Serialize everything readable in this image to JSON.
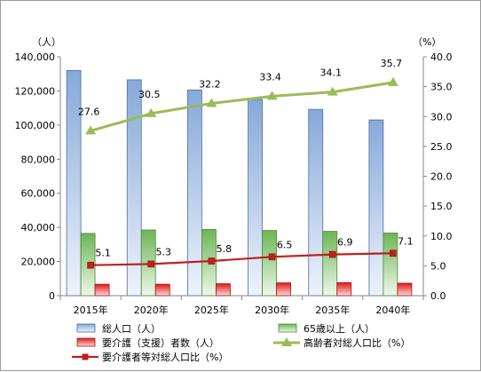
{
  "chart_data": {
    "type": "bar",
    "categories": [
      "2015年",
      "2020年",
      "2025年",
      "2030年",
      "2035年",
      "2040年"
    ],
    "y_left_unit": "（人）",
    "y_right_unit": "（%）",
    "y_left_range": [
      0,
      140000
    ],
    "y_left_ticks": [
      "0",
      "20,000",
      "40,000",
      "60,000",
      "80,000",
      "100,000",
      "120,000",
      "140,000"
    ],
    "y_left_tick_values": [
      0,
      20000,
      40000,
      60000,
      80000,
      100000,
      120000,
      140000
    ],
    "y_right_range": [
      0,
      40
    ],
    "y_right_ticks": [
      "0.0",
      "5.0",
      "10.0",
      "15.0",
      "20.0",
      "25.0",
      "30.0",
      "35.0",
      "40.0"
    ],
    "y_right_tick_values": [
      0,
      5,
      10,
      15,
      20,
      25,
      30,
      35,
      40
    ],
    "grid": false,
    "legend_position": "bottom",
    "series": [
      {
        "name": "総人口（人）",
        "type": "bar",
        "axis": "left",
        "color": "#4f81bd",
        "values": [
          132000,
          126500,
          120600,
          115000,
          109200,
          103000
        ]
      },
      {
        "name": "65歳以上（人）",
        "type": "bar",
        "axis": "left",
        "color": "#70ad47",
        "values": [
          36500,
          38500,
          38800,
          38200,
          37700,
          36700
        ]
      },
      {
        "name": "要介護（支援）者数（人）",
        "type": "bar",
        "axis": "left",
        "color": "#e02020",
        "values": [
          6700,
          6700,
          7000,
          7500,
          7600,
          7300
        ]
      },
      {
        "name": "高齢者対総人口比（%）",
        "type": "line",
        "axis": "right",
        "color": "#9bbb59",
        "marker": "triangle",
        "values": [
          27.6,
          30.5,
          32.2,
          33.4,
          34.1,
          35.7
        ],
        "labels": [
          "27.6",
          "30.5",
          "32.2",
          "33.4",
          "34.1",
          "35.7"
        ]
      },
      {
        "name": "要介護者等対総人口比（%）",
        "type": "line",
        "axis": "right",
        "color": "#c0201f",
        "marker": "square",
        "values": [
          5.1,
          5.3,
          5.8,
          6.5,
          6.9,
          7.1
        ],
        "labels": [
          "5.1",
          "5.3",
          "5.8",
          "6.5",
          "6.9",
          "7.1"
        ]
      }
    ]
  }
}
